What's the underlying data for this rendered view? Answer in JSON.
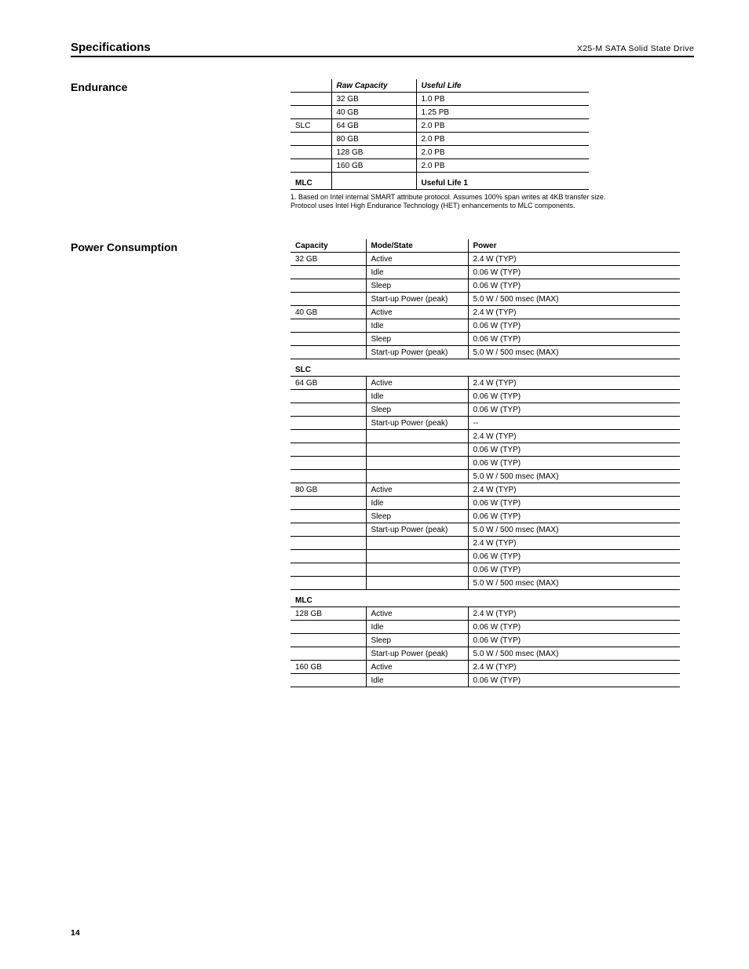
{
  "header": {
    "left": "Specifications",
    "right": "X25-M SATA Solid State Drive"
  },
  "page_number": "14",
  "table1": {
    "label": "Endurance",
    "columns": [
      "",
      "Raw Capacity",
      "Useful Life"
    ],
    "col_classes": [
      "c1",
      "c2",
      "c3"
    ],
    "rows": [
      [
        "",
        "32 GB",
        "1.0 PB"
      ],
      [
        "",
        "40 GB",
        "1.25 PB"
      ],
      [
        "SLC",
        "64 GB",
        "2.0 PB"
      ],
      [
        "",
        "80 GB",
        "2.0 PB"
      ],
      [
        "",
        "128 GB",
        "2.0 PB"
      ],
      [
        "",
        "160 GB",
        "2.0 PB"
      ]
    ],
    "subhead": [
      "MLC",
      "",
      "Useful Life 1"
    ],
    "footnotes": [
      "1. Based on Intel internal SMART attribute protocol. Assumes 100% span writes at 4KB transfer size.",
      "Protocol uses Intel High Endurance Technology (HET) enhancements to MLC components."
    ]
  },
  "table2": {
    "label": "Power Consumption",
    "columns": [
      "Capacity",
      "Mode/State",
      "Power"
    ],
    "col_classes": [
      "c1",
      "c2",
      "c3"
    ],
    "groups": [
      {
        "title": "",
        "rows": [
          [
            "32 GB",
            "Active",
            "2.4 W (TYP)"
          ],
          [
            "",
            "Idle",
            "0.06 W (TYP)"
          ],
          [
            "",
            "Sleep",
            "0.06 W (TYP)"
          ],
          [
            "",
            "Start-up Power (peak)",
            "5.0 W / 500 msec (MAX)"
          ]
        ]
      },
      {
        "title": "",
        "rows": [
          [
            "40 GB",
            "Active",
            "2.4 W (TYP)"
          ],
          [
            "",
            "Idle",
            "0.06 W (TYP)"
          ],
          [
            "",
            "Sleep",
            "0.06 W (TYP)"
          ],
          [
            "",
            "Start-up Power (peak)",
            "5.0 W / 500 msec (MAX)"
          ]
        ]
      },
      {
        "title": "SLC",
        "rows": [
          [
            "64 GB",
            "Active",
            "2.4 W (TYP)"
          ],
          [
            "",
            "Idle",
            "0.06 W (TYP)"
          ],
          [
            "",
            "Sleep",
            "0.06 W (TYP)"
          ],
          [
            "",
            "Start-up Power (peak)",
            "--"
          ],
          [
            "",
            "",
            "2.4 W (TYP)"
          ],
          [
            "",
            "",
            "0.06 W (TYP)"
          ],
          [
            "",
            "",
            "0.06 W (TYP)"
          ],
          [
            "",
            "",
            "5.0 W / 500 msec (MAX)"
          ]
        ]
      },
      {
        "title": "",
        "rows": [
          [
            "80 GB",
            "Active",
            "2.4 W (TYP)"
          ],
          [
            "",
            "Idle",
            "0.06 W (TYP)"
          ],
          [
            "",
            "Sleep",
            "0.06 W (TYP)"
          ],
          [
            "",
            "Start-up Power (peak)",
            "5.0 W / 500 msec (MAX)"
          ],
          [
            "",
            "",
            "2.4 W (TYP)"
          ],
          [
            "",
            "",
            "0.06 W (TYP)"
          ],
          [
            "",
            "",
            "0.06 W (TYP)"
          ],
          [
            "",
            "",
            "5.0 W / 500 msec (MAX)"
          ]
        ]
      },
      {
        "title": "MLC",
        "rows": [
          [
            "128 GB",
            "Active",
            "2.4 W (TYP)"
          ],
          [
            "",
            "Idle",
            "0.06 W (TYP)"
          ],
          [
            "",
            "Sleep",
            "0.06 W (TYP)"
          ],
          [
            "",
            "Start-up Power (peak)",
            "5.0 W / 500 msec (MAX)"
          ],
          [
            "160 GB",
            "Active",
            "2.4 W (TYP)"
          ],
          [
            "",
            "Idle",
            "0.06 W (TYP)"
          ]
        ]
      }
    ]
  }
}
